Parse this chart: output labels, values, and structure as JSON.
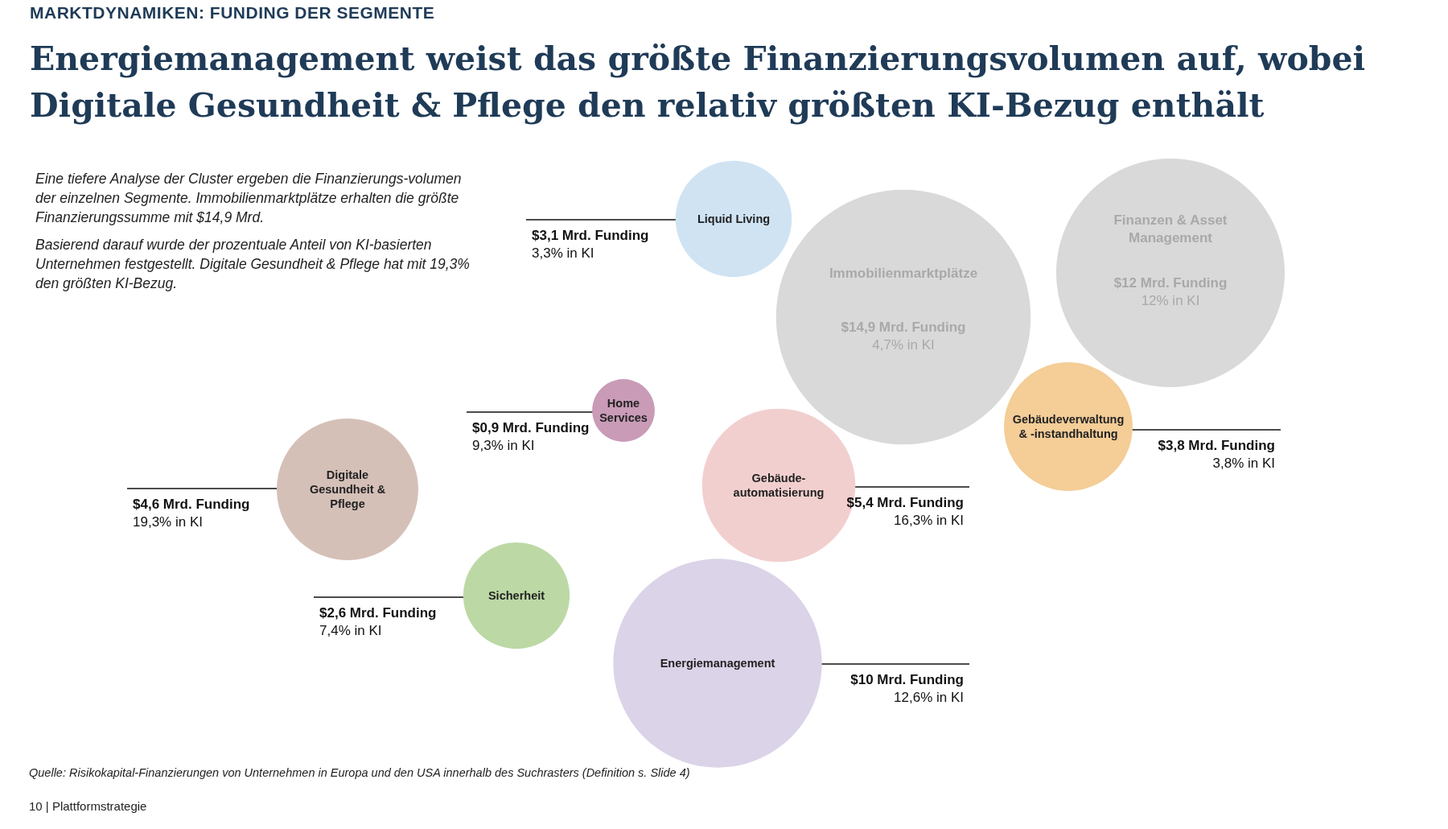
{
  "chart_data": {
    "type": "other",
    "subtitle": "MARKTDYNAMIKEN: FUNDING DER SEGMENTE",
    "title": "Energiemanagement weist das größte Finanzierungsvolumen auf, wobei Digitale Gesundheit & Pflege den relativ größten KI-Bezug enthält",
    "categories": [
      "Liquid Living",
      "Immobilienmarktplätze",
      "Finanzen & Asset\nManagement",
      "Home\nServices",
      "Digitale\nGesundheit &\nPflege",
      "Gebäude-\nautomatisierung",
      "Gebäudeverwaltung\n& -instandhaltung",
      "Sicherheit",
      "Energiemanagement"
    ],
    "colors": [
      "#cfe3f3",
      "#d9d9d9",
      "#d9d9d9",
      "#c99bb7",
      "#d5c0b8",
      "#f2cfcf",
      "#f4cd97",
      "#bcd9a5",
      "#dbd3e8"
    ],
    "series": [
      {
        "values": [
          3.1,
          14.9,
          12,
          0.9,
          4.6,
          5.4,
          3.8,
          2.6,
          10
        ],
        "value_labels": [
          "$3,1 Mrd. Funding",
          "$14,9 Mrd. Funding",
          "$12 Mrd. Funding",
          "$0,9 Mrd. Funding",
          "$4,6 Mrd. Funding",
          "$5,4 Mrd. Funding",
          "$3,8 Mrd. Funding",
          "$2,6 Mrd. Funding",
          "$10 Mrd. Funding"
        ]
      },
      {
        "values": [
          3.3,
          4.7,
          12,
          9.3,
          19.3,
          16.3,
          3.8,
          7.4,
          12.6
        ],
        "value_labels": [
          "3,3% in KI",
          "4,7% in KI",
          "12% in KI",
          "9,3% in KI",
          "19,3% in KI",
          "16,3% in KI",
          "3,8% in KI",
          "7,4% in KI",
          "12,6% in KI"
        ]
      }
    ],
    "annotations": [
      "Eine tiefere Analyse der Cluster ergeben die Finanzierungs-volumen der einzelnen Segmente. Immobilienmarktplätze erhalten die größte Finanzierungssumme mit $14,9 Mrd.",
      "Basierend darauf wurde der prozentuale Anteil von KI-basierten Unternehmen festgestellt. Digitale Gesundheit & Pflege hat mit 19,3% den größten KI-Bezug.",
      "Quelle: Risikokapital-Finanzierungen von Unternehmen in Europa und den USA innerhalb des Suchrasters (Definition s. Slide 4)",
      "10 | Plattformstrategie"
    ]
  }
}
